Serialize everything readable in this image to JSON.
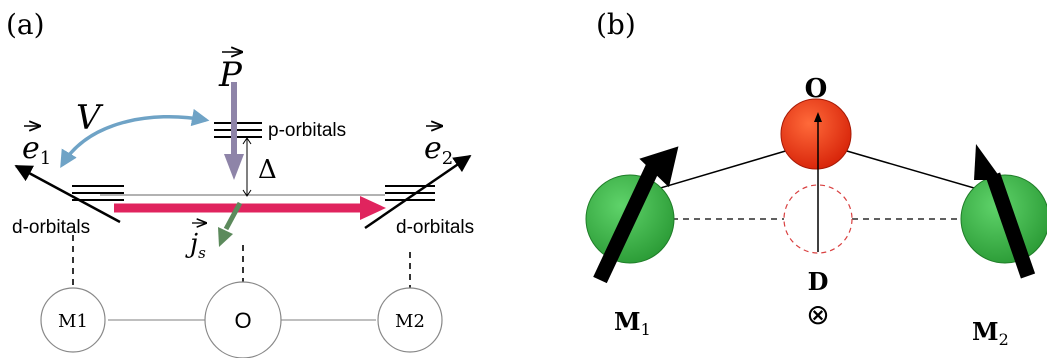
{
  "panel_a": {
    "label": "(a)",
    "vector_p": "P",
    "p_orbitals_label": "p-orbitals",
    "delta_label": "Δ",
    "v_label": "V",
    "e1_label": "e",
    "e1_sub": "1",
    "e2_label": "e",
    "e2_sub": "2",
    "d_orbitals_left_label": "d-orbitals",
    "d_orbitals_right_label": "d-orbitals",
    "js_label": "j",
    "js_sub": "s",
    "node_m1": "M1",
    "node_o": "O",
    "node_m2": "M2"
  },
  "panel_b": {
    "label": "(b)",
    "o_label": "O",
    "m1_label": "M",
    "m1_sub": "1",
    "m2_label": "M",
    "m2_sub": "2",
    "d_label": "D",
    "d_symbol": "⊗"
  },
  "colors": {
    "p_arrow": "#8e84a8",
    "v_arrow": "#6fa3c6",
    "current_arrow": "#e0245e",
    "js_arrow": "#5c8a5c",
    "oxygen": "#e33012",
    "metal": "#3cb34a",
    "dashed_circle": "#d94040"
  }
}
